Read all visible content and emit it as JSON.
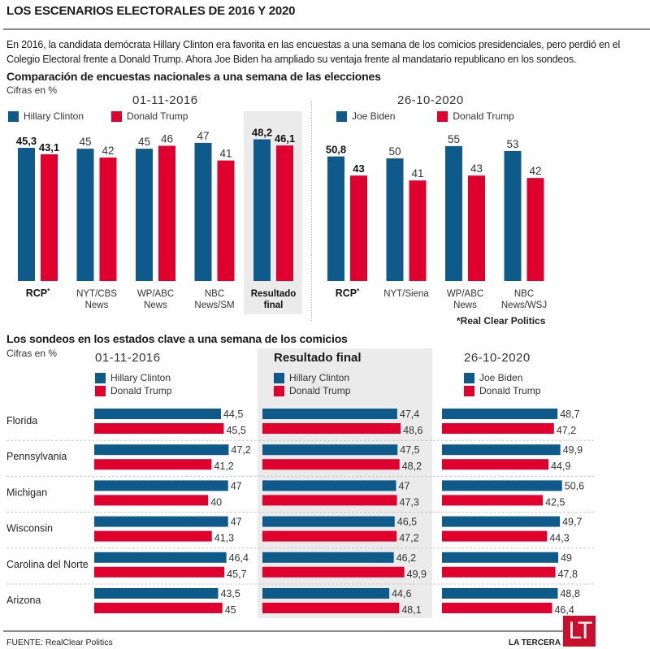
{
  "title": "LOS ESCENARIOS ELECTORALES DE 2016 Y 2020",
  "intro": "En 2016, la candidata demócrata Hillary Clinton era favorita en las encuestas a una semana de los comicios presidenciales, pero perdió en el Colegio Electoral frente a Donald Trump. Ahora Joe Biden ha ampliado su ventaja frente al mandatario republicano en los sondeos.",
  "colors": {
    "democrat": "#0e5a8a",
    "republican": "#e0002e",
    "highlight_bg": "#ebebeb"
  },
  "national": {
    "heading": "Comparación de encuestas nacionales a una semana de las elecciones",
    "unit_note": "Cifras en %",
    "footnote": "*Real Clear Politics"
  },
  "states_section": {
    "heading": "Los sondeos en los estados clave a una semana de los comicios",
    "unit_note": "Cifras en %"
  },
  "source": "FUENTE: RealClear Politics",
  "brand": "LA TERCERA",
  "logo_text": "LT",
  "chart_data": [
    {
      "type": "bar",
      "title": "01-11-2016",
      "legend": [
        "Hillary Clinton",
        "Donald Trump"
      ],
      "legend_placement": "top-left",
      "categories": [
        {
          "label": "RCP",
          "sup": "*",
          "bold": true
        },
        {
          "label": "NYT/CBS News",
          "lines": [
            "NYT/CBS",
            "News"
          ]
        },
        {
          "label": "WP/ABC News",
          "lines": [
            "WP/ABC",
            "News"
          ]
        },
        {
          "label": "NBC News/SM",
          "lines": [
            "NBC",
            "News/SM"
          ]
        },
        {
          "label": "Resultado final",
          "lines": [
            "Resultado",
            "final"
          ],
          "bold": true,
          "highlight": true
        }
      ],
      "series": [
        {
          "name": "Hillary Clinton",
          "values": [
            45.3,
            45,
            45,
            47,
            48.2
          ],
          "labels": [
            "45,3",
            "45",
            "45",
            "47",
            "48,2"
          ]
        },
        {
          "name": "Donald Trump",
          "values": [
            43.1,
            42,
            46,
            41,
            46.1
          ],
          "labels": [
            "43,1",
            "42",
            "46",
            "41",
            "46,1"
          ]
        }
      ],
      "ylabel": "Cifras en %",
      "ylim": [
        0,
        50
      ]
    },
    {
      "type": "bar",
      "title": "26-10-2020",
      "legend": [
        "Joe Biden",
        "Donald Trump"
      ],
      "legend_placement": "top-left",
      "categories": [
        {
          "label": "RCP",
          "sup": "*",
          "bold": true
        },
        {
          "label": "NYT/Siena",
          "lines": [
            "NYT/Siena"
          ]
        },
        {
          "label": "WP/ABC News",
          "lines": [
            "WP/ABC",
            "News"
          ]
        },
        {
          "label": "NBC News/WSJ",
          "lines": [
            "NBC",
            "News/WSJ"
          ]
        }
      ],
      "series": [
        {
          "name": "Joe Biden",
          "values": [
            50.8,
            50,
            55,
            53
          ],
          "labels": [
            "50,8",
            "50",
            "55",
            "53"
          ]
        },
        {
          "name": "Donald Trump",
          "values": [
            43,
            41,
            43,
            42
          ],
          "labels": [
            "43",
            "41",
            "43",
            "42"
          ]
        }
      ],
      "ylabel": "Cifras en %",
      "ylim": [
        0,
        60
      ]
    },
    {
      "type": "bar",
      "orientation": "horizontal",
      "title": "Estados clave",
      "categories": [
        "Florida",
        "Pennsylvania",
        "Michigan",
        "Wisconsin",
        "Carolina del Norte",
        "Arizona"
      ],
      "panels": [
        {
          "title": "01-11-2016",
          "series": [
            {
              "name": "Hillary Clinton",
              "values": [
                44.5,
                47.2,
                47,
                47,
                46.4,
                43.5
              ],
              "labels": [
                "44,5",
                "47,2",
                "47",
                "47",
                "46,4",
                "43,5"
              ]
            },
            {
              "name": "Donald Trump",
              "values": [
                45.5,
                41.2,
                40,
                41.3,
                45.7,
                45
              ],
              "labels": [
                "45,5",
                "41,2",
                "40",
                "41,3",
                "45,7",
                "45"
              ]
            }
          ]
        },
        {
          "title": "Resultado final",
          "highlight": true,
          "series": [
            {
              "name": "Hillary Clinton",
              "values": [
                47.4,
                47.5,
                47,
                46.5,
                46.2,
                44.6
              ],
              "labels": [
                "47,4",
                "47,5",
                "47",
                "46,5",
                "46,2",
                "44,6"
              ]
            },
            {
              "name": "Donald Trump",
              "values": [
                48.6,
                48.2,
                47.3,
                47.2,
                49.9,
                48.1
              ],
              "labels": [
                "48,6",
                "48,2",
                "47,3",
                "47,2",
                "49,9",
                "48,1"
              ]
            }
          ]
        },
        {
          "title": "26-10-2020",
          "series": [
            {
              "name": "Joe Biden",
              "values": [
                48.7,
                49.9,
                50.6,
                49.7,
                49,
                48.8
              ],
              "labels": [
                "48,7",
                "49,9",
                "50,6",
                "49,7",
                "49",
                "48,8"
              ]
            },
            {
              "name": "Donald Trump",
              "values": [
                47.2,
                44.9,
                42.5,
                44.3,
                47.8,
                46.4
              ],
              "labels": [
                "47,2",
                "44,9",
                "42,5",
                "44,3",
                "47,8",
                "46,4"
              ]
            }
          ]
        }
      ],
      "xlabel": "Cifras en %"
    }
  ]
}
